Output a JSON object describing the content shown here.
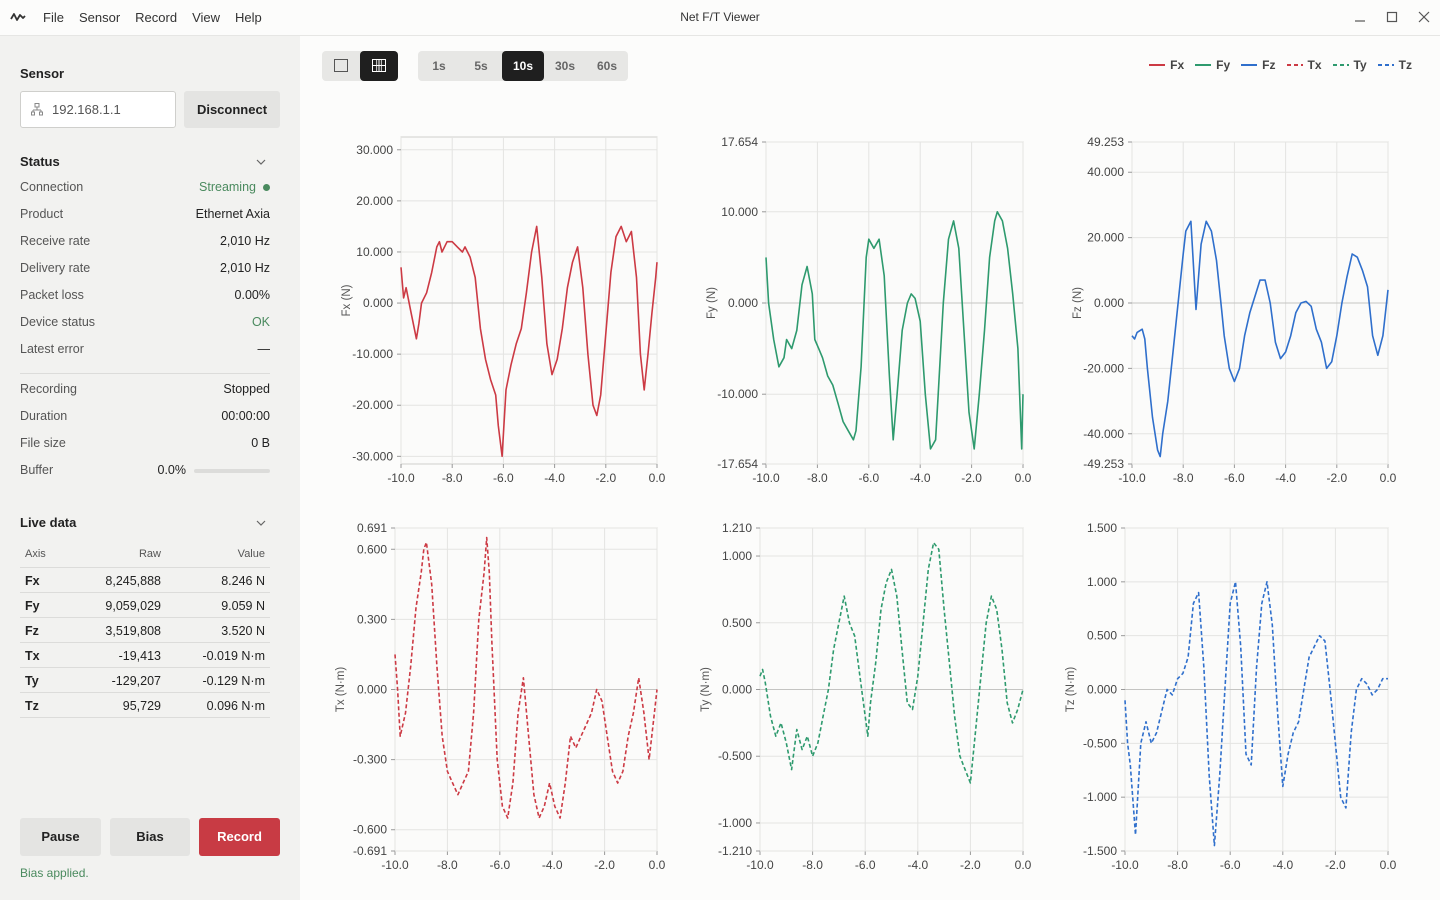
{
  "window": {
    "title": "Net F/T Viewer"
  },
  "menu": [
    "File",
    "Sensor",
    "Record",
    "View",
    "Help"
  ],
  "sidebar": {
    "sensor_title": "Sensor",
    "ip_value": "192.168.1.1",
    "disconnect_label": "Disconnect",
    "status_title": "Status",
    "status": [
      {
        "label": "Connection",
        "value": "Streaming"
      },
      {
        "label": "Product",
        "value": "Ethernet Axia"
      },
      {
        "label": "Receive rate",
        "value": "2,010 Hz"
      },
      {
        "label": "Delivery rate",
        "value": "2,010 Hz"
      },
      {
        "label": "Packet loss",
        "value": "0.00%"
      },
      {
        "label": "Device status",
        "value": "OK"
      },
      {
        "label": "Latest error",
        "value": "—"
      }
    ],
    "recording": [
      {
        "label": "Recording",
        "value": "Stopped"
      },
      {
        "label": "Duration",
        "value": "00:00:00"
      },
      {
        "label": "File size",
        "value": "0 B"
      }
    ],
    "buffer_label": "Buffer",
    "buffer_value": "0.0%",
    "buffer_fraction": 0.0,
    "live_title": "Live data",
    "live_headers": [
      "Axis",
      "Raw",
      "Value"
    ],
    "live_rows": [
      {
        "axis": "Fx",
        "raw": "8,245,888",
        "value": "8.246 N"
      },
      {
        "axis": "Fy",
        "raw": "9,059,029",
        "value": "9.059 N"
      },
      {
        "axis": "Fz",
        "raw": "3,519,808",
        "value": "3.520 N"
      },
      {
        "axis": "Tx",
        "raw": "-19,413",
        "value": "-0.019 N·m"
      },
      {
        "axis": "Ty",
        "raw": "-129,207",
        "value": "-0.129 N·m"
      },
      {
        "axis": "Tz",
        "raw": "95,729",
        "value": "0.096 N·m"
      }
    ],
    "pause_label": "Pause",
    "bias_label": "Bias",
    "record_label": "Record",
    "status_message": "Bias applied."
  },
  "toolbar": {
    "layout_single": "single-plot",
    "layout_grid": "grid-plot",
    "active_layout": "grid",
    "windows": [
      "1s",
      "5s",
      "10s",
      "30s",
      "60s"
    ],
    "active_window": "10s"
  },
  "colors": {
    "Fx": "#cc3a44",
    "Fy": "#2e9a6e",
    "Fz": "#2f6fcc",
    "Tx": "#cc3a44",
    "Ty": "#2e9a6e",
    "Tz": "#2f6fcc",
    "streaming": "#4a8a5e",
    "ok": "#4a8a5e"
  },
  "legend": [
    {
      "name": "Fx",
      "dashed": false
    },
    {
      "name": "Fy",
      "dashed": false
    },
    {
      "name": "Fz",
      "dashed": false
    },
    {
      "name": "Tx",
      "dashed": true
    },
    {
      "name": "Ty",
      "dashed": true
    },
    {
      "name": "Tz",
      "dashed": true
    }
  ],
  "chart_data": [
    {
      "type": "line",
      "name": "Fx",
      "ylabel": "Fx (N)",
      "dashed": false,
      "xlim": [
        -10.0,
        0.0
      ],
      "ylim": [
        -31.5,
        32.5
      ],
      "xticks": [
        "-10.0",
        "-8.0",
        "-6.0",
        "-4.0",
        "-2.0",
        "0.0"
      ],
      "yticks": [
        30,
        20,
        10,
        0,
        -10,
        -20,
        -30
      ],
      "ytick_labels": [
        "30.000",
        "20.000",
        "10.000",
        "0.000",
        "-10.000",
        "-20.000",
        "-30.000"
      ],
      "x": [
        -10.0,
        -9.9,
        -9.8,
        -9.6,
        -9.4,
        -9.3,
        -9.2,
        -9.0,
        -8.8,
        -8.6,
        -8.5,
        -8.4,
        -8.2,
        -8.0,
        -7.8,
        -7.6,
        -7.5,
        -7.3,
        -7.1,
        -6.9,
        -6.7,
        -6.5,
        -6.3,
        -6.2,
        -6.05,
        -5.9,
        -5.7,
        -5.5,
        -5.3,
        -5.1,
        -4.9,
        -4.7,
        -4.5,
        -4.3,
        -4.1,
        -3.9,
        -3.7,
        -3.5,
        -3.3,
        -3.1,
        -2.9,
        -2.7,
        -2.5,
        -2.35,
        -2.2,
        -2.0,
        -1.8,
        -1.6,
        -1.4,
        -1.2,
        -1.0,
        -0.8,
        -0.65,
        -0.5,
        -0.35,
        -0.2,
        -0.05,
        0.0
      ],
      "y": [
        7,
        1,
        3,
        -2,
        -7,
        -4,
        0,
        2,
        6,
        11,
        12,
        10,
        12,
        12,
        11,
        10,
        11,
        9,
        5,
        -5,
        -11,
        -15,
        -18,
        -24,
        -30,
        -17,
        -12,
        -8,
        -5,
        2,
        10,
        15,
        5,
        -8,
        -14,
        -11,
        -5,
        3,
        8,
        11,
        3,
        -10,
        -20,
        -22,
        -18,
        -6,
        6,
        13,
        15,
        12,
        14,
        5,
        -10,
        -17,
        -10,
        -2,
        5,
        8
      ]
    },
    {
      "type": "line",
      "name": "Fy",
      "ylabel": "Fy (N)",
      "dashed": false,
      "xlim": [
        -10.0,
        0.0
      ],
      "ylim": [
        -17.654,
        17.654
      ],
      "xticks": [
        "-10.0",
        "-8.0",
        "-6.0",
        "-4.0",
        "-2.0",
        "0.0"
      ],
      "yticks": [
        17.654,
        10,
        0,
        -10,
        -17.654
      ],
      "ytick_labels": [
        "17.654",
        "10.000",
        "0.000",
        "-10.000",
        "-17.654"
      ],
      "x": [
        -10.0,
        -9.9,
        -9.7,
        -9.5,
        -9.3,
        -9.2,
        -9.0,
        -8.8,
        -8.6,
        -8.4,
        -8.2,
        -8.1,
        -7.95,
        -7.8,
        -7.6,
        -7.4,
        -7.2,
        -7.0,
        -6.8,
        -6.6,
        -6.5,
        -6.3,
        -6.1,
        -6.0,
        -5.8,
        -5.6,
        -5.4,
        -5.2,
        -5.05,
        -4.9,
        -4.7,
        -4.5,
        -4.35,
        -4.2,
        -4.0,
        -3.8,
        -3.6,
        -3.4,
        -3.3,
        -3.1,
        -2.9,
        -2.7,
        -2.5,
        -2.3,
        -2.1,
        -1.9,
        -1.7,
        -1.5,
        -1.3,
        -1.1,
        -1.0,
        -0.8,
        -0.6,
        -0.4,
        -0.2,
        -0.05,
        0.0
      ],
      "y": [
        5,
        0,
        -4,
        -7,
        -6,
        -4,
        -5,
        -3,
        2,
        4,
        1,
        -4,
        -5,
        -6,
        -8,
        -9,
        -11,
        -13,
        -14,
        -15,
        -14,
        -7,
        5,
        7,
        6,
        7,
        3,
        -8,
        -15,
        -10,
        -3,
        0,
        1,
        0.5,
        -2,
        -10,
        -16,
        -15,
        -10,
        0,
        7,
        9,
        6,
        -3,
        -12,
        -16,
        -10,
        -3,
        5,
        9,
        10,
        9,
        6,
        1,
        -5,
        -16,
        -10
      ]
    },
    {
      "type": "line",
      "name": "Fz",
      "ylabel": "Fz (N)",
      "dashed": false,
      "xlim": [
        -10.0,
        0.0
      ],
      "ylim": [
        -49.253,
        49.253
      ],
      "xticks": [
        "-10.0",
        "-8.0",
        "-6.0",
        "-4.0",
        "-2.0",
        "0.0"
      ],
      "yticks": [
        49.253,
        40,
        20,
        0,
        -20,
        -40,
        -49.253
      ],
      "ytick_labels": [
        "49.253",
        "40.000",
        "20.000",
        "0.000",
        "-20.000",
        "-40.000",
        "-49.253"
      ],
      "x": [
        -10.0,
        -9.9,
        -9.8,
        -9.6,
        -9.5,
        -9.4,
        -9.2,
        -9.0,
        -8.9,
        -8.8,
        -8.6,
        -8.4,
        -8.2,
        -8.0,
        -7.9,
        -7.7,
        -7.5,
        -7.3,
        -7.1,
        -6.9,
        -6.7,
        -6.5,
        -6.4,
        -6.2,
        -6.0,
        -5.8,
        -5.6,
        -5.4,
        -5.2,
        -5.0,
        -4.8,
        -4.6,
        -4.4,
        -4.2,
        -4.0,
        -3.8,
        -3.6,
        -3.4,
        -3.2,
        -3.0,
        -2.8,
        -2.6,
        -2.4,
        -2.2,
        -2.0,
        -1.8,
        -1.6,
        -1.4,
        -1.2,
        -1.0,
        -0.8,
        -0.6,
        -0.4,
        -0.2,
        0.0
      ],
      "y": [
        -10,
        -11,
        -9,
        -8,
        -11,
        -20,
        -35,
        -45,
        -47,
        -40,
        -30,
        -15,
        0,
        15,
        22,
        25,
        -2,
        18,
        25,
        22,
        13,
        -2,
        -10,
        -20,
        -24,
        -20,
        -10,
        -3,
        2,
        7,
        7,
        0,
        -12,
        -17,
        -15,
        -10,
        -3,
        0,
        0.5,
        -1,
        -8,
        -12,
        -20,
        -18,
        -10,
        0,
        8,
        15,
        14,
        10,
        5,
        -10,
        -16,
        -10,
        4
      ]
    },
    {
      "type": "line",
      "name": "Tx",
      "ylabel": "Tx (N·m)",
      "dashed": true,
      "xlim": [
        -10.0,
        0.0
      ],
      "ylim": [
        -0.691,
        0.691
      ],
      "xticks": [
        "-10.0",
        "-8.0",
        "-6.0",
        "-4.0",
        "-2.0",
        "0.0"
      ],
      "yticks": [
        0.691,
        0.6,
        0.3,
        0,
        -0.3,
        -0.6,
        -0.691
      ],
      "ytick_labels": [
        "0.691",
        "0.600",
        "0.300",
        "0.000",
        "-0.300",
        "-0.600",
        "-0.691"
      ],
      "x": [
        -10.0,
        -9.9,
        -9.8,
        -9.6,
        -9.4,
        -9.2,
        -9.0,
        -8.9,
        -8.8,
        -8.6,
        -8.4,
        -8.2,
        -8.0,
        -7.8,
        -7.6,
        -7.4,
        -7.2,
        -7.0,
        -6.9,
        -6.8,
        -6.6,
        -6.5,
        -6.4,
        -6.3,
        -6.1,
        -5.9,
        -5.7,
        -5.5,
        -5.3,
        -5.1,
        -4.9,
        -4.7,
        -4.5,
        -4.3,
        -4.1,
        -3.9,
        -3.7,
        -3.5,
        -3.3,
        -3.1,
        -2.9,
        -2.7,
        -2.5,
        -2.3,
        -2.1,
        -1.9,
        -1.7,
        -1.5,
        -1.3,
        -1.1,
        -0.9,
        -0.7,
        -0.5,
        -0.3,
        -0.1,
        0.0
      ],
      "y": [
        0.15,
        0,
        -0.2,
        -0.1,
        0.1,
        0.35,
        0.5,
        0.6,
        0.63,
        0.45,
        0.1,
        -0.2,
        -0.35,
        -0.4,
        -0.45,
        -0.4,
        -0.35,
        -0.1,
        0.1,
        0.3,
        0.5,
        0.65,
        0.5,
        0.2,
        -0.3,
        -0.5,
        -0.55,
        -0.4,
        -0.1,
        0.05,
        -0.2,
        -0.45,
        -0.55,
        -0.5,
        -0.4,
        -0.5,
        -0.55,
        -0.4,
        -0.2,
        -0.25,
        -0.2,
        -0.15,
        -0.1,
        0.0,
        -0.05,
        -0.2,
        -0.35,
        -0.4,
        -0.35,
        -0.2,
        -0.1,
        0.05,
        -0.1,
        -0.3,
        -0.1,
        0.0
      ]
    },
    {
      "type": "line",
      "name": "Ty",
      "ylabel": "Ty (N·m)",
      "dashed": true,
      "xlim": [
        -10.0,
        0.0
      ],
      "ylim": [
        -1.21,
        1.21
      ],
      "xticks": [
        "-10.0",
        "-8.0",
        "-6.0",
        "-4.0",
        "-2.0",
        "0.0"
      ],
      "yticks": [
        1.21,
        1.0,
        0.5,
        0,
        -0.5,
        -1.0,
        -1.21
      ],
      "ytick_labels": [
        "1.210",
        "1.000",
        "0.500",
        "0.000",
        "-0.500",
        "-1.000",
        "-1.210"
      ],
      "x": [
        -10.0,
        -9.9,
        -9.8,
        -9.6,
        -9.4,
        -9.2,
        -9.0,
        -8.8,
        -8.6,
        -8.4,
        -8.2,
        -8.0,
        -7.8,
        -7.6,
        -7.4,
        -7.2,
        -7.0,
        -6.8,
        -6.6,
        -6.4,
        -6.2,
        -6.0,
        -5.9,
        -5.8,
        -5.6,
        -5.4,
        -5.2,
        -5.0,
        -4.8,
        -4.6,
        -4.4,
        -4.2,
        -4.0,
        -3.8,
        -3.6,
        -3.4,
        -3.2,
        -3.0,
        -2.8,
        -2.6,
        -2.4,
        -2.2,
        -2.0,
        -1.8,
        -1.6,
        -1.4,
        -1.2,
        -1.0,
        -0.8,
        -0.6,
        -0.4,
        -0.2,
        0.0
      ],
      "y": [
        0.1,
        0.15,
        0.05,
        -0.2,
        -0.35,
        -0.25,
        -0.4,
        -0.6,
        -0.3,
        -0.45,
        -0.35,
        -0.5,
        -0.4,
        -0.2,
        0.0,
        0.3,
        0.5,
        0.7,
        0.5,
        0.4,
        0.1,
        -0.2,
        -0.35,
        -0.1,
        0.2,
        0.6,
        0.8,
        0.9,
        0.7,
        0.3,
        -0.1,
        -0.15,
        0.1,
        0.5,
        0.9,
        1.1,
        1.05,
        0.6,
        0.2,
        -0.2,
        -0.5,
        -0.6,
        -0.7,
        -0.3,
        0.1,
        0.5,
        0.7,
        0.6,
        0.3,
        -0.1,
        -0.25,
        -0.15,
        0.0
      ]
    },
    {
      "type": "line",
      "name": "Tz",
      "ylabel": "Tz (N·m)",
      "dashed": true,
      "xlim": [
        -10.0,
        0.0
      ],
      "ylim": [
        -1.5,
        1.5
      ],
      "xticks": [
        "-10.0",
        "-8.0",
        "-6.0",
        "-4.0",
        "-2.0",
        "0.0"
      ],
      "yticks": [
        1.5,
        1.0,
        0.5,
        0,
        -0.5,
        -1.0,
        -1.5
      ],
      "ytick_labels": [
        "1.500",
        "1.000",
        "0.500",
        "0.000",
        "-0.500",
        "-1.000",
        "-1.500"
      ],
      "x": [
        -10.0,
        -9.9,
        -9.8,
        -9.6,
        -9.4,
        -9.2,
        -9.0,
        -8.8,
        -8.6,
        -8.4,
        -8.2,
        -8.0,
        -7.8,
        -7.6,
        -7.4,
        -7.2,
        -7.0,
        -6.8,
        -6.6,
        -6.4,
        -6.2,
        -6.0,
        -5.8,
        -5.6,
        -5.4,
        -5.2,
        -5.0,
        -4.8,
        -4.6,
        -4.4,
        -4.2,
        -4.0,
        -3.8,
        -3.6,
        -3.4,
        -3.2,
        -3.0,
        -2.8,
        -2.6,
        -2.4,
        -2.2,
        -2.0,
        -1.8,
        -1.6,
        -1.4,
        -1.2,
        -1.0,
        -0.8,
        -0.6,
        -0.4,
        -0.2,
        0.0
      ],
      "y": [
        -0.1,
        -0.5,
        -0.7,
        -1.35,
        -0.5,
        -0.3,
        -0.5,
        -0.4,
        -0.2,
        0.0,
        -0.05,
        0.1,
        0.15,
        0.3,
        0.8,
        0.9,
        0.2,
        -0.8,
        -1.45,
        -0.8,
        0.0,
        0.8,
        1.0,
        0.4,
        -0.6,
        -0.7,
        0.2,
        0.8,
        1.0,
        0.6,
        -0.2,
        -0.9,
        -0.6,
        -0.4,
        -0.3,
        0.0,
        0.3,
        0.4,
        0.5,
        0.45,
        0.0,
        -0.5,
        -1.0,
        -1.1,
        -0.4,
        0.0,
        0.1,
        0.05,
        -0.05,
        0.0,
        0.1,
        0.1
      ]
    }
  ]
}
